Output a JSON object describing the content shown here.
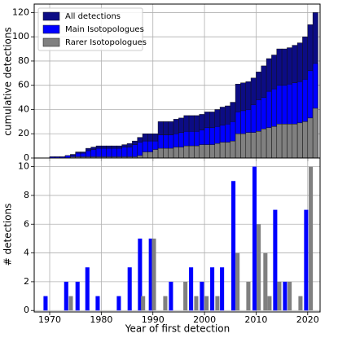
{
  "chart_data": [
    {
      "type": "bar",
      "ylabel": "cumulative detections",
      "grid": true,
      "legend": "upper left",
      "x": [
        1970,
        1971,
        1972,
        1973,
        1974,
        1975,
        1976,
        1977,
        1978,
        1979,
        1980,
        1981,
        1982,
        1983,
        1984,
        1985,
        1986,
        1987,
        1988,
        1989,
        1990,
        1991,
        1992,
        1993,
        1994,
        1995,
        1996,
        1997,
        1998,
        1999,
        2000,
        2001,
        2002,
        2003,
        2004,
        2005,
        2006,
        2007,
        2008,
        2009,
        2010,
        2011,
        2012,
        2013,
        2014,
        2015,
        2016,
        2017,
        2018,
        2019,
        2020,
        2021
      ],
      "xlim": [
        1967,
        2022.4
      ],
      "xticks": [
        1970,
        1980,
        1990,
        2000,
        2010,
        2020
      ],
      "ylim": [
        0,
        127
      ],
      "yticks": [
        0,
        20,
        40,
        60,
        80,
        100,
        120
      ],
      "series": [
        {
          "name": "All detections",
          "color": "#0c0c84",
          "values": [
            1,
            1,
            1,
            2,
            3,
            5,
            5,
            8,
            9,
            10,
            10,
            10,
            10,
            10,
            11,
            12,
            14,
            17,
            20,
            20,
            20,
            30,
            30,
            30,
            32,
            33,
            35,
            35,
            35,
            36,
            38,
            38,
            40,
            42,
            43,
            46,
            61,
            62,
            63,
            66,
            71,
            76,
            82,
            85,
            90,
            90,
            91,
            93,
            95,
            100,
            110,
            120
          ]
        },
        {
          "name": "Main Isotopologues",
          "color": "#0000ff",
          "values": [
            1,
            1,
            1,
            2,
            2,
            4,
            4,
            6,
            7,
            8,
            8,
            8,
            8,
            8,
            9,
            9,
            11,
            13,
            14,
            14,
            14,
            19,
            19,
            19,
            20,
            21,
            22,
            22,
            22,
            23,
            25,
            25,
            26,
            27,
            28,
            30,
            38,
            39,
            40,
            44,
            48,
            50,
            55,
            57,
            60,
            60,
            61,
            62,
            63,
            65,
            72,
            78
          ]
        },
        {
          "name": "Rarer Isotopologues",
          "color": "#808080",
          "values": [
            0,
            0,
            0,
            0,
            1,
            1,
            1,
            1,
            1,
            1,
            1,
            1,
            1,
            1,
            1,
            1,
            1,
            2,
            5,
            5,
            7,
            8,
            8,
            8,
            9,
            9,
            10,
            10,
            10,
            11,
            11,
            11,
            12,
            13,
            13,
            14,
            20,
            20,
            21,
            21,
            22,
            24,
            25,
            26,
            28,
            28,
            28,
            28,
            29,
            30,
            33,
            41
          ]
        }
      ]
    },
    {
      "type": "grouped-bar",
      "xlabel": "Year of first detection",
      "ylabel": "# detections",
      "grid": true,
      "xlim": [
        1967,
        2022.4
      ],
      "xticks": [
        1970,
        1980,
        1990,
        2000,
        2010,
        2020
      ],
      "ylim": [
        -0.1,
        10.6
      ],
      "yticks": [
        0,
        2,
        4,
        6,
        8,
        10
      ],
      "series": [
        {
          "color": "#0000ff",
          "x": [
            1969.2,
            1973.2,
            1975.4,
            1977.3,
            1979.3,
            1983.4,
            1985.5,
            1987.5,
            1989.6,
            1993.5,
            1997.4,
            1999.5,
            2001.5,
            2003.4,
            2005.6,
            2009.7,
            2013.7,
            2015.6,
            2019.7
          ],
          "values": [
            1,
            2,
            2,
            3,
            1,
            1,
            3,
            5,
            5,
            2,
            3,
            2,
            3,
            3,
            9,
            10,
            7,
            2,
            7
          ]
        },
        {
          "color": "#808080",
          "x": [
            1974.1,
            1988.1,
            1990.2,
            1992.4,
            1996.3,
            1998.4,
            2000.4,
            2002.5,
            2006.4,
            2008.5,
            2010.5,
            2011.8,
            2012.6,
            2014.5,
            2016.5,
            2018.6,
            2020.6
          ],
          "values": [
            1,
            1,
            5,
            1,
            2,
            1,
            1,
            1,
            4,
            2,
            6,
            4,
            1,
            2,
            2,
            1,
            10
          ]
        }
      ]
    }
  ]
}
